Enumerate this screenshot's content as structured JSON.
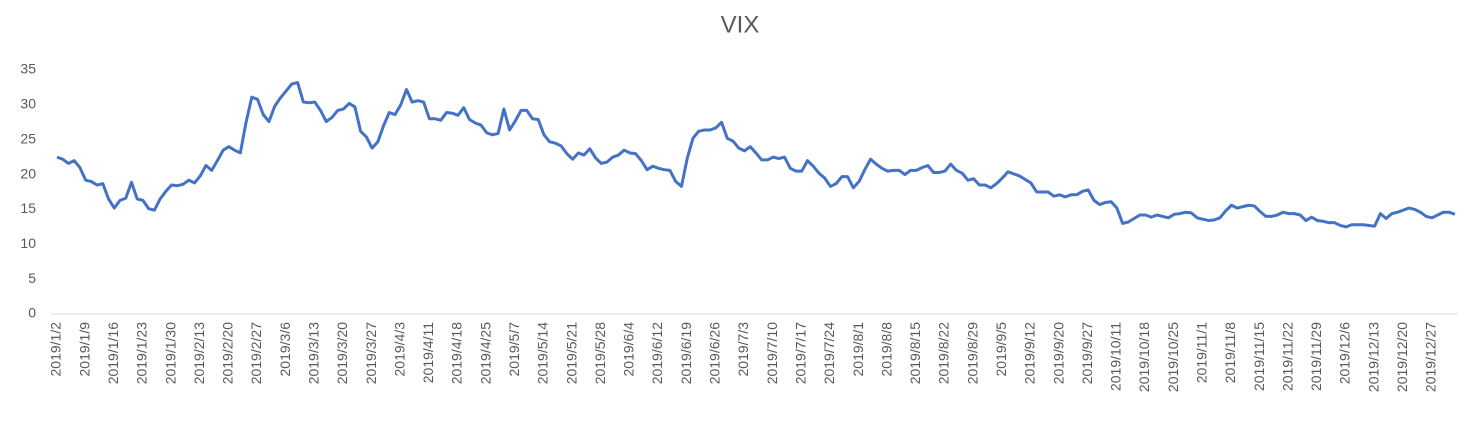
{
  "chart_data": {
    "type": "line",
    "title": "VIX",
    "categories": [
      "2019/1/2",
      null,
      null,
      null,
      null,
      "2019/1/9",
      null,
      null,
      null,
      null,
      "2019/1/16",
      null,
      null,
      null,
      null,
      "2019/1/23",
      null,
      null,
      null,
      null,
      "2019/1/30",
      null,
      null,
      null,
      null,
      "2019/2/13",
      null,
      null,
      null,
      null,
      "2019/2/20",
      null,
      null,
      null,
      null,
      "2019/2/27",
      null,
      null,
      null,
      null,
      "2019/3/6",
      null,
      null,
      null,
      null,
      "2019/3/13",
      null,
      null,
      null,
      null,
      "2019/3/20",
      null,
      null,
      null,
      null,
      "2019/3/27",
      null,
      null,
      null,
      null,
      "2019/4/3",
      null,
      null,
      null,
      null,
      "2019/4/11",
      null,
      null,
      null,
      null,
      "2019/4/18",
      null,
      null,
      null,
      null,
      "2019/4/25",
      null,
      null,
      null,
      null,
      "2019/5/7",
      null,
      null,
      null,
      null,
      "2019/5/14",
      null,
      null,
      null,
      null,
      "2019/5/21",
      null,
      null,
      null,
      null,
      "2019/5/28",
      null,
      null,
      null,
      null,
      "2019/6/4",
      null,
      null,
      null,
      null,
      "2019/6/12",
      null,
      null,
      null,
      null,
      "2019/6/19",
      null,
      null,
      null,
      null,
      "2019/6/26",
      null,
      null,
      null,
      null,
      "2019/7/3",
      null,
      null,
      null,
      null,
      "2019/7/10",
      null,
      null,
      null,
      null,
      "2019/7/17",
      null,
      null,
      null,
      null,
      "2019/7/24",
      null,
      null,
      null,
      null,
      "2019/8/1",
      null,
      null,
      null,
      null,
      "2019/8/8",
      null,
      null,
      null,
      null,
      "2019/8/15",
      null,
      null,
      null,
      null,
      "2019/8/22",
      null,
      null,
      null,
      null,
      "2019/8/29",
      null,
      null,
      null,
      null,
      "2019/9/5",
      null,
      null,
      null,
      null,
      "2019/9/12",
      null,
      null,
      null,
      null,
      "2019/9/20",
      null,
      null,
      null,
      null,
      "2019/9/27",
      null,
      null,
      null,
      null,
      "2019/10/11",
      null,
      null,
      null,
      null,
      "2019/10/18",
      null,
      null,
      null,
      null,
      "2019/10/25",
      null,
      null,
      null,
      null,
      "2019/11/1",
      null,
      null,
      null,
      null,
      "2019/11/8",
      null,
      null,
      null,
      null,
      "2019/11/15",
      null,
      null,
      null,
      null,
      "2019/11/22",
      null,
      null,
      null,
      null,
      "2019/11/29",
      null,
      null,
      null,
      null,
      "2019/12/6",
      null,
      null,
      null,
      null,
      "2019/12/13",
      null,
      null,
      null,
      null,
      "2019/12/20",
      null,
      null,
      null,
      null,
      "2019/12/27",
      null,
      null,
      null,
      null
    ],
    "series": [
      {
        "name": "VIX",
        "color": "#4472c4",
        "values": [
          22.5,
          22.2,
          21.6,
          22.0,
          21.0,
          19.2,
          19.0,
          18.5,
          18.7,
          16.5,
          15.2,
          16.3,
          16.6,
          18.9,
          16.5,
          16.3,
          15.1,
          14.9,
          16.5,
          17.6,
          18.5,
          18.4,
          18.6,
          19.2,
          18.8,
          19.8,
          21.3,
          20.6,
          22.0,
          23.5,
          24.0,
          23.5,
          23.1,
          27.5,
          31.1,
          30.8,
          28.6,
          27.6,
          29.8,
          31.0,
          32.0,
          33.0,
          33.2,
          30.4,
          30.3,
          30.4,
          29.2,
          27.6,
          28.2,
          29.2,
          29.4,
          30.2,
          29.7,
          26.2,
          25.4,
          23.8,
          24.7,
          27.0,
          28.9,
          28.6,
          30.0,
          32.2,
          30.4,
          30.6,
          30.4,
          28.0,
          28.0,
          27.8,
          28.9,
          28.8,
          28.5,
          29.6,
          27.9,
          27.4,
          27.1,
          26.0,
          25.7,
          25.9,
          29.4,
          26.4,
          27.7,
          29.2,
          29.2,
          28.0,
          27.9,
          25.7,
          24.7,
          24.5,
          24.1,
          23.0,
          22.2,
          23.1,
          22.8,
          23.7,
          22.4,
          21.6,
          21.8,
          22.5,
          22.8,
          23.5,
          23.1,
          23.0,
          22.0,
          20.7,
          21.2,
          20.9,
          20.7,
          20.6,
          19.0,
          18.3,
          22.3,
          25.2,
          26.2,
          26.4,
          26.4,
          26.7,
          27.5,
          25.2,
          24.8,
          23.8,
          23.4,
          24.0,
          23.1,
          22.1,
          22.1,
          22.5,
          22.3,
          22.5,
          20.9,
          20.5,
          20.5,
          22.0,
          21.2,
          20.2,
          19.5,
          18.3,
          18.7,
          19.7,
          19.7,
          18.1,
          19.0,
          20.7,
          22.2,
          21.5,
          20.9,
          20.5,
          20.6,
          20.6,
          20.0,
          20.6,
          20.6,
          21.0,
          21.3,
          20.3,
          20.3,
          20.5,
          21.5,
          20.6,
          20.2,
          19.2,
          19.4,
          18.5,
          18.5,
          18.1,
          18.7,
          19.5,
          20.4,
          20.1,
          19.8,
          19.3,
          18.8,
          17.5,
          17.5,
          17.5,
          16.9,
          17.1,
          16.8,
          17.1,
          17.1,
          17.6,
          17.8,
          16.3,
          15.7,
          16.0,
          16.1,
          15.2,
          13.0,
          13.2,
          13.7,
          14.2,
          14.2,
          13.9,
          14.2,
          14.0,
          13.8,
          14.3,
          14.4,
          14.6,
          14.5,
          13.8,
          13.6,
          13.4,
          13.5,
          13.8,
          14.8,
          15.6,
          15.2,
          15.4,
          15.6,
          15.5,
          14.7,
          14.0,
          14.0,
          14.2,
          14.6,
          14.4,
          14.4,
          14.2,
          13.4,
          13.9,
          13.4,
          13.3,
          13.1,
          13.1,
          12.7,
          12.5,
          12.8,
          12.8,
          12.8,
          12.7,
          12.6,
          14.4,
          13.7,
          14.4,
          14.6,
          14.9,
          15.2,
          15.0,
          14.6,
          14.0,
          13.8,
          14.2,
          14.6,
          14.6,
          14.3
        ]
      }
    ],
    "ylim": [
      0,
      35
    ],
    "yticks": [
      0,
      5,
      10,
      15,
      20,
      25,
      30,
      35
    ],
    "grid": false
  }
}
